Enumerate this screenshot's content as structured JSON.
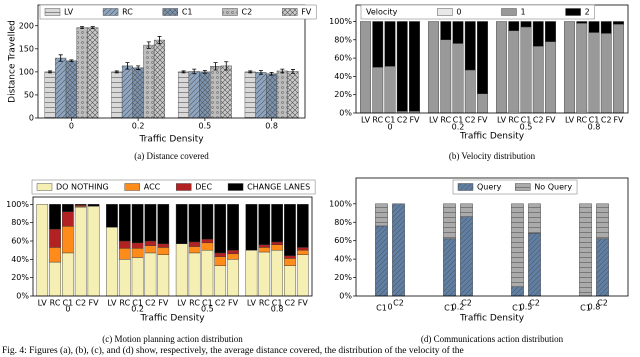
{
  "chart_data": [
    {
      "type": "grouped_bar",
      "caption": "(a) Distance covered",
      "x_label": "Traffic Density",
      "y_label": "Distance Travelled",
      "categories": [
        "0",
        "0.2",
        "0.5",
        "0.8"
      ],
      "series": [
        {
          "name": "LV",
          "color": "#d9d9d9",
          "values": [
            100,
            100,
            100,
            100
          ],
          "errors": [
            2,
            2,
            2,
            2
          ]
        },
        {
          "name": "RC",
          "color": "#8ea6c2",
          "values": [
            130,
            113,
            101,
            99
          ],
          "errors": [
            7,
            7,
            5,
            4
          ]
        },
        {
          "name": "C1",
          "color": "#7b94b2",
          "values": [
            124,
            109,
            100,
            96
          ],
          "errors": [
            2,
            4,
            3,
            3
          ]
        },
        {
          "name": "C2",
          "color": "#bdbdbd",
          "values": [
            196,
            158,
            112,
            102
          ],
          "errors": [
            2,
            7,
            8,
            4
          ]
        },
        {
          "name": "FV",
          "color": "#c9c9c9",
          "values": [
            196,
            169,
            113,
            101
          ],
          "errors": [
            2,
            8,
            9,
            4
          ]
        }
      ],
      "ylim": [
        0,
        245
      ],
      "yticks": [
        0,
        50,
        100,
        150,
        200
      ],
      "legend": "upper center"
    },
    {
      "type": "stacked_bar",
      "caption": "(b) Velocity distribution",
      "x_label": "Traffic Density",
      "legend_title": "Velocity",
      "groups": [
        "0",
        "0.2",
        "0.5",
        "0.8"
      ],
      "bar_labels": [
        "LV",
        "RC",
        "C1",
        "C2",
        "FV",
        "LV",
        "RC",
        "C1",
        "C2",
        "FV",
        "LV",
        "RC",
        "C1",
        "C2",
        "FV",
        "LV",
        "RC",
        "C1",
        "C2",
        "FV"
      ],
      "series": [
        {
          "name": "0",
          "color": "#e8e8e8",
          "values": [
            0,
            0,
            0,
            0,
            0,
            0,
            0,
            0,
            0,
            0,
            0,
            2,
            0,
            0,
            0,
            0,
            2,
            0,
            0,
            0
          ]
        },
        {
          "name": "1",
          "color": "#999999",
          "values": [
            100,
            50,
            51,
            2,
            2,
            100,
            80,
            76,
            47,
            21,
            100,
            88,
            94,
            73,
            78,
            100,
            96,
            88,
            87,
            97
          ]
        },
        {
          "name": "2",
          "color": "#000000",
          "values": [
            0,
            50,
            49,
            98,
            98,
            0,
            20,
            24,
            53,
            79,
            0,
            10,
            6,
            27,
            22,
            0,
            2,
            12,
            13,
            3
          ]
        }
      ],
      "ylim": [
        0,
        118
      ],
      "yticks": [
        {
          "value": 0,
          "label": "0%"
        },
        {
          "value": 20,
          "label": "20%"
        },
        {
          "value": 40,
          "label": "40%"
        },
        {
          "value": 60,
          "label": "60%"
        },
        {
          "value": 80,
          "label": "80%"
        },
        {
          "value": 100,
          "label": "100%"
        }
      ],
      "legend": "upper center"
    },
    {
      "type": "stacked_bar",
      "caption": "(c) Motion planning action distribution",
      "x_label": "Traffic Density",
      "groups": [
        "0",
        "0.2",
        "0.5",
        "0.8"
      ],
      "bar_labels": [
        "LV",
        "RC",
        "C1",
        "C2",
        "FV",
        "LV",
        "RC",
        "C1",
        "C2",
        "FV",
        "LV",
        "RC",
        "C1",
        "C2",
        "FV",
        "LV",
        "RC",
        "C1",
        "C2",
        "FV"
      ],
      "series": [
        {
          "name": "DO NOTHING",
          "color": "#f6efb4",
          "values": [
            100,
            37,
            47,
            97,
            98,
            75,
            40,
            42,
            47,
            45,
            57,
            47,
            50,
            33,
            40,
            50,
            48,
            50,
            33,
            45
          ]
        },
        {
          "name": "ACC",
          "color": "#ff8c1a",
          "values": [
            0,
            16,
            29,
            1,
            0,
            0,
            12,
            10,
            8,
            8,
            0,
            7,
            8,
            10,
            6,
            0,
            5,
            6,
            8,
            5
          ]
        },
        {
          "name": "DEC",
          "color": "#b22222",
          "values": [
            0,
            20,
            16,
            1,
            0,
            0,
            8,
            6,
            5,
            4,
            0,
            5,
            4,
            4,
            4,
            0,
            3,
            3,
            3,
            3
          ]
        },
        {
          "name": "CHANGE LANES",
          "color": "#000000",
          "values": [
            0,
            27,
            8,
            1,
            2,
            25,
            40,
            42,
            40,
            43,
            43,
            41,
            38,
            53,
            50,
            50,
            44,
            41,
            56,
            47
          ]
        }
      ],
      "ylim": [
        0,
        108
      ],
      "yticks": [
        {
          "value": 0,
          "label": "0%"
        },
        {
          "value": 20,
          "label": "20%"
        },
        {
          "value": 40,
          "label": "40%"
        },
        {
          "value": 60,
          "label": "60%"
        },
        {
          "value": 80,
          "label": "80%"
        },
        {
          "value": 100,
          "label": "100%"
        }
      ],
      "legend": "above"
    },
    {
      "type": "stacked_bar",
      "caption": "(d) Communications action distribution",
      "x_label": "Traffic Density",
      "groups": [
        "0",
        "0.2",
        "0.5",
        "0.8"
      ],
      "bar_labels": [
        "C1",
        "C2",
        "C1",
        "C2",
        "C1",
        "C2",
        "C1",
        "C2"
      ],
      "series": [
        {
          "name": "Query",
          "color": "#5f80a6",
          "values": [
            76,
            100,
            62,
            86,
            10,
            68,
            0,
            62
          ]
        },
        {
          "name": "No Query",
          "color": "#ababab",
          "values": [
            24,
            0,
            38,
            14,
            90,
            32,
            100,
            38
          ]
        }
      ],
      "ylim": [
        0,
        128
      ],
      "yticks": [
        {
          "value": 0,
          "label": "0%"
        },
        {
          "value": 20,
          "label": "20%"
        },
        {
          "value": 40,
          "label": "40%"
        },
        {
          "value": 60,
          "label": "60%"
        },
        {
          "value": 80,
          "label": "80%"
        },
        {
          "value": 100,
          "label": "100%"
        }
      ],
      "legend": "upper center"
    }
  ],
  "figure_caption": "Fig. 4: Figures (a), (b), (c), and (d) show, respectively, the average distance covered, the distribution of the velocity of the"
}
